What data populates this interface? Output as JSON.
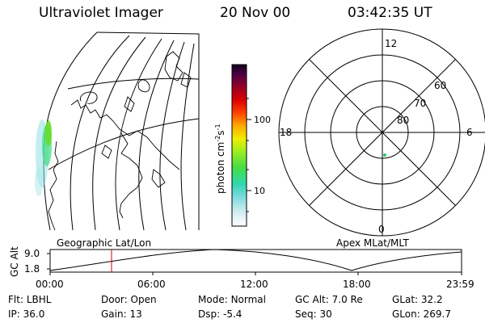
{
  "header": {
    "instrument": "Ultraviolet Imager",
    "date": "20 Nov 00",
    "time": "03:42:35 UT"
  },
  "colorbar": {
    "unit_label": "photon cm",
    "unit_exp1": "-2",
    "unit_mid": "s",
    "unit_exp2": "-1",
    "tick_100": "100",
    "tick_10": "10"
  },
  "polar_plot": {
    "mlt_top": "12",
    "mlt_left": "18",
    "mlt_right": "6",
    "mlt_bottom": "0",
    "lat_60": "60",
    "lat_70": "70",
    "lat_80": "80"
  },
  "map_labels": {
    "left": "Geographic Lat/Lon",
    "right": "Apex MLat/MLT"
  },
  "altitude_plot": {
    "ylabel": "GC Alt",
    "y_top": "9.0",
    "y_bottom": "1.8",
    "x_ticks": [
      "00:00",
      "06:00",
      "12:00",
      "18:00",
      "23:59"
    ]
  },
  "status": {
    "flt_label": "Flt:",
    "flt_value": "LBHL",
    "door_label": "Door:",
    "door_value": "Open",
    "mode_label": "Mode:",
    "mode_value": "Normal",
    "gcalt_label": "GC Alt:",
    "gcalt_value": "7.0 Re",
    "glat_label": "GLat:",
    "glat_value": "32.2",
    "ip_label": "IP:",
    "ip_value": "36.0",
    "gain_label": "Gain:",
    "gain_value": "13",
    "dsp_label": "Dsp:",
    "dsp_value": "-5.4",
    "seq_label": "Seq:",
    "seq_value": "30",
    "glon_label": "GLon:",
    "glon_value": "269.7"
  }
}
